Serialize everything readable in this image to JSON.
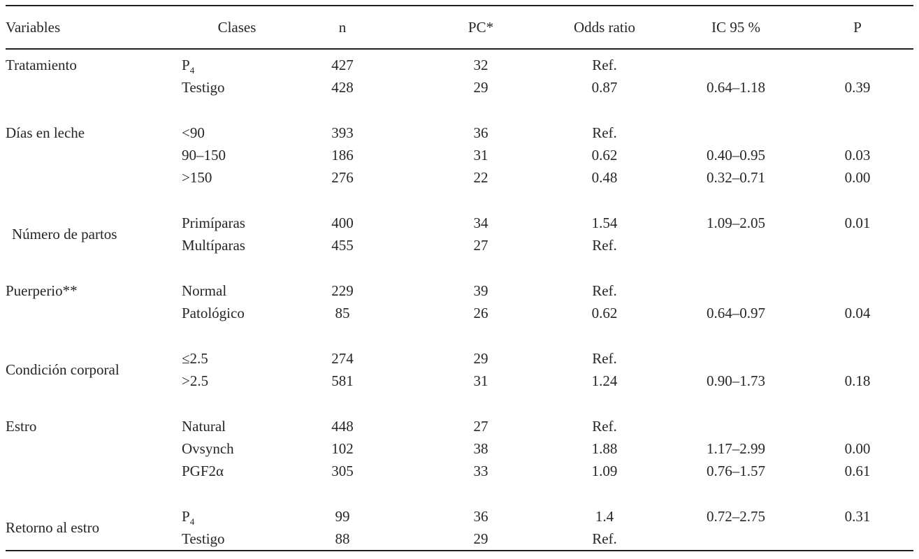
{
  "page": {
    "background_color": "#ffffff",
    "text_color": "#262626",
    "rule_color": "#1f1f1f"
  },
  "table": {
    "columns": [
      {
        "key": "variables",
        "label": "Variables"
      },
      {
        "key": "clases",
        "label": "Clases"
      },
      {
        "key": "n",
        "label": "n"
      },
      {
        "key": "pc",
        "label": "PC*"
      },
      {
        "key": "odds_ratio",
        "label": "Odds ratio"
      },
      {
        "key": "ic95",
        "label": "IC 95 %"
      },
      {
        "key": "p",
        "label": "P"
      }
    ],
    "groups": [
      {
        "variable": "Tratamiento",
        "rows": [
          {
            "clase": {
              "base": "P",
              "sub": "4"
            },
            "n": "427",
            "pc": "32",
            "odds_ratio": "Ref.",
            "ic95": "",
            "p": ""
          },
          {
            "clase": "Testigo",
            "n": "428",
            "pc": "29",
            "odds_ratio": "0.87",
            "ic95": "0.64–1.18",
            "p": "0.39"
          }
        ]
      },
      {
        "variable": "Días en leche",
        "rows": [
          {
            "clase": "<90",
            "n": "393",
            "pc": "36",
            "odds_ratio": "Ref.",
            "ic95": "",
            "p": ""
          },
          {
            "clase": "90–150",
            "n": "186",
            "pc": "31",
            "odds_ratio": "0.62",
            "ic95": "0.40–0.95",
            "p": "0.03"
          },
          {
            "clase": ">150",
            "n": "276",
            "pc": "22",
            "odds_ratio": "0.48",
            "ic95": "0.32–0.71",
            "p": "0.00"
          }
        ]
      },
      {
        "variable": "Número de partos",
        "rows": [
          {
            "clase": "Primíparas",
            "n": "400",
            "pc": "34",
            "odds_ratio": "1.54",
            "ic95": "1.09–2.05",
            "p": "0.01"
          },
          {
            "clase": "Multíparas",
            "n": "455",
            "pc": "27",
            "odds_ratio": "Ref.",
            "ic95": "",
            "p": ""
          }
        ]
      },
      {
        "variable": "Puerperio**",
        "rows": [
          {
            "clase": "Normal",
            "n": "229",
            "pc": "39",
            "odds_ratio": "Ref.",
            "ic95": "",
            "p": ""
          },
          {
            "clase": "Patológico",
            "n": "85",
            "pc": "26",
            "odds_ratio": "0.62",
            "ic95": "0.64–0.97",
            "p": "0.04"
          }
        ]
      },
      {
        "variable": "Condición corporal",
        "rows": [
          {
            "clase": "≤2.5",
            "n": "274",
            "pc": "29",
            "odds_ratio": "Ref.",
            "ic95": "",
            "p": ""
          },
          {
            "clase": ">2.5",
            "n": "581",
            "pc": "31",
            "odds_ratio": "1.24",
            "ic95": "0.90–1.73",
            "p": "0.18"
          }
        ]
      },
      {
        "variable": "Estro",
        "rows": [
          {
            "clase": "Natural",
            "n": "448",
            "pc": "27",
            "odds_ratio": "Ref.",
            "ic95": "",
            "p": ""
          },
          {
            "clase": "Ovsynch",
            "n": "102",
            "pc": "38",
            "odds_ratio": "1.88",
            "ic95": "1.17–2.99",
            "p": "0.00"
          },
          {
            "clase": "PGF2α",
            "n": "305",
            "pc": "33",
            "odds_ratio": "1.09",
            "ic95": "0.76–1.57",
            "p": "0.61"
          }
        ]
      },
      {
        "variable": "Retorno al estro",
        "rows": [
          {
            "clase": {
              "base": "P",
              "sub": "4"
            },
            "n": "99",
            "pc": "36",
            "odds_ratio": "1.4",
            "ic95": "0.72–2.75",
            "p": "0.31"
          },
          {
            "clase": "Testigo",
            "n": "88",
            "pc": "29",
            "odds_ratio": "Ref.",
            "ic95": "",
            "p": ""
          }
        ]
      }
    ]
  }
}
